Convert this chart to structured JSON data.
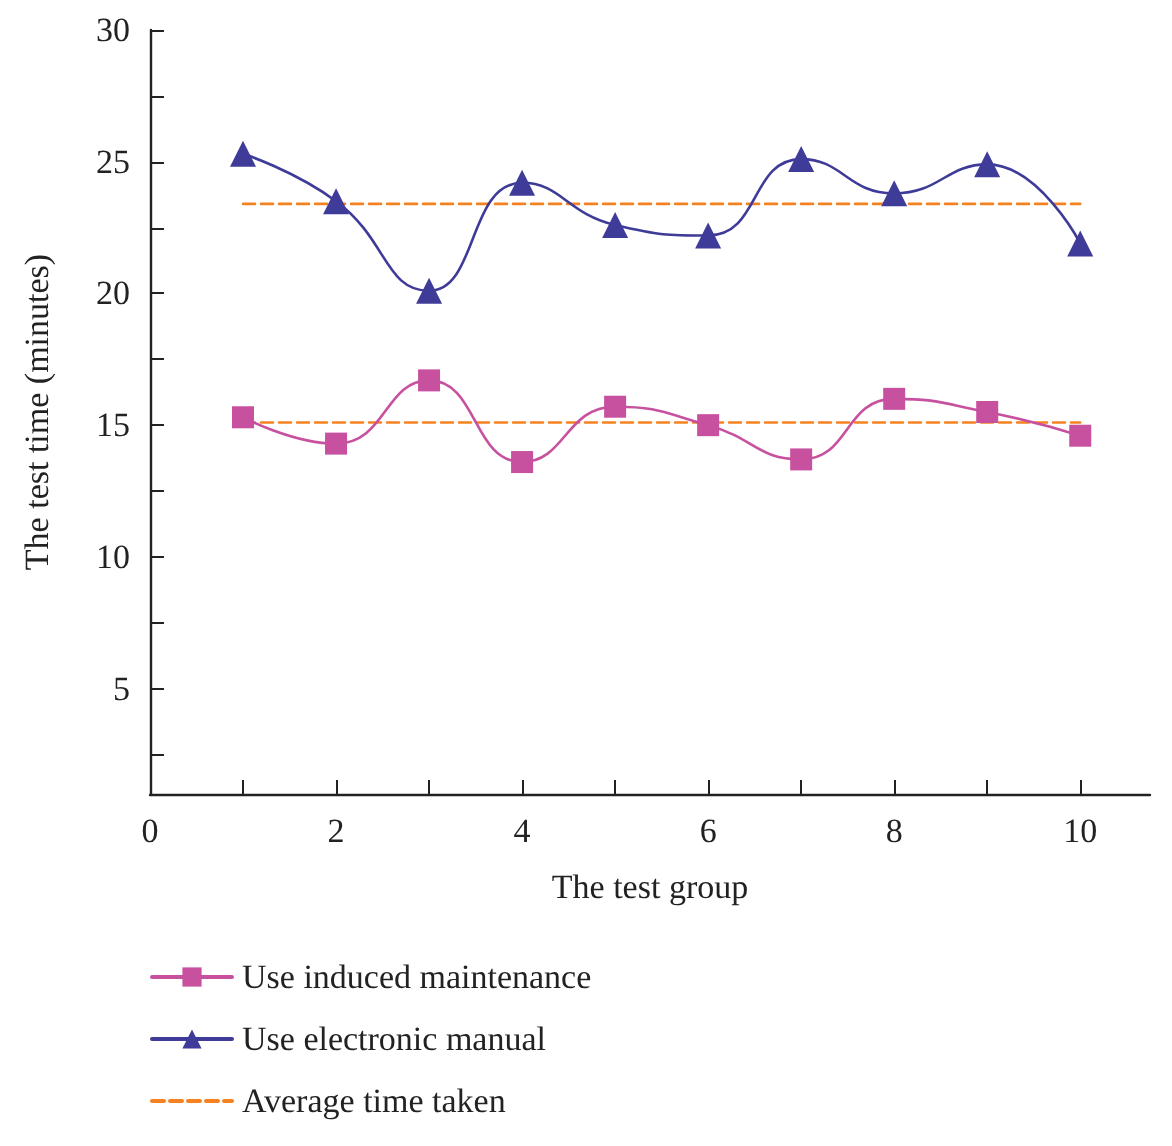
{
  "chart_data": {
    "type": "line",
    "xlabel": "The test group",
    "ylabel": "The test time (minutes)",
    "xlim": [
      0,
      10.75
    ],
    "xticks": [
      0,
      {
        "value": 1,
        "label": null
      },
      2,
      {
        "value": 3,
        "label": null
      },
      4,
      {
        "value": 5,
        "label": null
      },
      6,
      {
        "value": 7,
        "label": null
      },
      8,
      {
        "value": 9,
        "label": null
      },
      10
    ],
    "ylim": [
      1,
      30
    ],
    "yticks": [
      {
        "value": 2.5,
        "label": null
      },
      5,
      {
        "value": 7.5,
        "label": null
      },
      10,
      {
        "value": 12.5,
        "label": null
      },
      15,
      {
        "value": 17.5,
        "label": null
      },
      20,
      {
        "value": 22.5,
        "label": null
      },
      25,
      {
        "value": 27.5,
        "label": null
      },
      30
    ],
    "grid": false,
    "legend": "bottom",
    "series": [
      {
        "name": "Use induced maintenance",
        "color": "#c7509f",
        "marker": "square",
        "line_style": "solid",
        "x": [
          1,
          2,
          3,
          4,
          5,
          6,
          7,
          8,
          9,
          10
        ],
        "values": [
          15.3,
          14.3,
          16.7,
          13.6,
          15.7,
          15.0,
          13.7,
          16.0,
          15.5,
          14.6
        ]
      },
      {
        "name": "Use electronic manual",
        "color": "#3f3b98",
        "marker": "triangle",
        "line_style": "solid",
        "x": [
          1,
          2,
          3,
          4,
          5,
          6,
          7,
          8,
          9,
          10
        ],
        "values": [
          25.3,
          23.5,
          20.1,
          24.2,
          22.6,
          22.2,
          25.1,
          23.8,
          24.9,
          21.9
        ]
      },
      {
        "name": "Average time taken",
        "color": "#f58220",
        "marker": "none",
        "line_style": "dashed",
        "x": [
          1,
          10
        ],
        "values": [
          15.1,
          15.1
        ]
      },
      {
        "color": "#f58220",
        "marker": "none",
        "line_style": "dashed",
        "x": [
          1,
          10
        ],
        "values": [
          23.4,
          23.4
        ]
      }
    ]
  }
}
